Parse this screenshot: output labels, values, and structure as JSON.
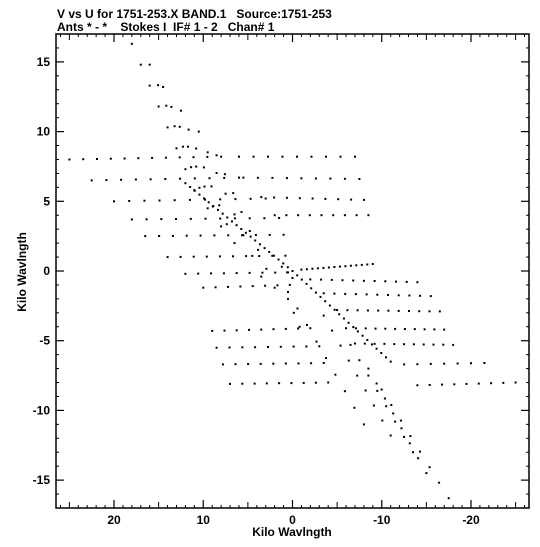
{
  "header": {
    "line1": "V vs U for 1751-253.X BAND.1   Source:1751-253",
    "line2": "Ants * - *    Stokes I  IF# 1 - 2   Chan# 1"
  },
  "chart_data": {
    "type": "scatter",
    "title": "V vs U for 1751-253.X BAND.1   Source:1751-253",
    "subtitle": "Ants * - *    Stokes I  IF# 1 - 2   Chan# 1",
    "xlabel": "Kilo Wavlngth",
    "ylabel": "Kilo Wavlngth",
    "xlim": [
      26.5,
      -26.5
    ],
    "ylim": [
      -17,
      17
    ],
    "x_reversed": true,
    "xticks": [
      20,
      10,
      0,
      -10,
      -20
    ],
    "xtick_labels": [
      "20",
      "10",
      "0",
      "-10",
      "-20"
    ],
    "yticks": [
      15,
      10,
      5,
      0,
      -5,
      -10,
      -15
    ],
    "ytick_labels": [
      "15",
      "10",
      "5",
      "0",
      "-5",
      "-10",
      "-15"
    ],
    "grid": false,
    "marker": "dot",
    "segments": [
      {
        "name": "",
        "x0": 25.0,
        "y0": 8.0,
        "x1": 8.0,
        "y1": 8.2,
        "n": 12
      },
      {
        "name": "",
        "x0": 22.5,
        "y0": 6.5,
        "x1": 6.0,
        "y1": 6.7,
        "n": 11
      },
      {
        "name": "",
        "x0": 20.0,
        "y0": 5.0,
        "x1": 3.0,
        "y1": 5.2,
        "n": 11
      },
      {
        "name": "",
        "x0": 18.0,
        "y0": 3.7,
        "x1": 1.5,
        "y1": 3.8,
        "n": 11
      },
      {
        "name": "",
        "x0": 16.5,
        "y0": 2.5,
        "x1": 1.0,
        "y1": 2.6,
        "n": 11
      },
      {
        "name": "",
        "x0": 14.0,
        "y0": 1.0,
        "x1": 0.8,
        "y1": 1.1,
        "n": 10
      },
      {
        "name": "",
        "x0": 12.0,
        "y0": -0.2,
        "x1": 0.5,
        "y1": -0.1,
        "n": 9
      },
      {
        "name": "",
        "x0": 10.0,
        "y0": -1.2,
        "x1": 0.3,
        "y1": -1.0,
        "n": 8
      },
      {
        "name": "",
        "x0": 6.0,
        "y0": 8.2,
        "x1": -7.0,
        "y1": 8.2,
        "n": 9
      },
      {
        "name": "",
        "x0": 5.5,
        "y0": 6.7,
        "x1": -7.5,
        "y1": 6.6,
        "n": 9
      },
      {
        "name": "",
        "x0": 3.5,
        "y0": 5.3,
        "x1": -8.0,
        "y1": 5.1,
        "n": 9
      },
      {
        "name": "",
        "x0": 2.0,
        "y0": 4.0,
        "x1": -8.5,
        "y1": 4.0,
        "n": 9
      },
      {
        "name": "",
        "x0": -1.0,
        "y0": 0.1,
        "x1": -9.0,
        "y1": 0.5,
        "n": 14
      },
      {
        "name": "",
        "x0": -2.0,
        "y0": -0.6,
        "x1": -14.0,
        "y1": -0.8,
        "n": 11
      },
      {
        "name": "",
        "x0": -3.5,
        "y0": -1.6,
        "x1": -15.5,
        "y1": -1.8,
        "n": 11
      },
      {
        "name": "",
        "x0": -5.0,
        "y0": -2.8,
        "x1": -16.5,
        "y1": -2.9,
        "n": 11
      },
      {
        "name": "",
        "x0": -6.0,
        "y0": -4.1,
        "x1": -17.0,
        "y1": -4.2,
        "n": 11
      },
      {
        "name": "",
        "x0": -7.0,
        "y0": -5.2,
        "x1": -18.0,
        "y1": -5.3,
        "n": 11
      },
      {
        "name": "",
        "x0": 9.0,
        "y0": -4.3,
        "x1": -2.0,
        "y1": -4.1,
        "n": 9
      },
      {
        "name": "",
        "x0": 8.5,
        "y0": -5.5,
        "x1": -3.0,
        "y1": -5.4,
        "n": 9
      },
      {
        "name": "",
        "x0": 7.8,
        "y0": -6.7,
        "x1": -3.5,
        "y1": -6.6,
        "n": 9
      },
      {
        "name": "",
        "x0": 7.0,
        "y0": -8.1,
        "x1": -4.0,
        "y1": -8.0,
        "n": 9
      },
      {
        "name": "",
        "x0": -12.5,
        "y0": -6.7,
        "x1": -21.5,
        "y1": -6.6,
        "n": 7
      },
      {
        "name": "",
        "x0": -14.0,
        "y0": -8.2,
        "x1": -25.0,
        "y1": -8.0,
        "n": 9
      },
      {
        "name": "",
        "x0": 18.0,
        "y0": 16.3,
        "x1": 11.0,
        "y1": 5.8,
        "n": 8
      },
      {
        "name": "",
        "x0": 16.0,
        "y0": 14.8,
        "x1": 9.5,
        "y1": 4.5,
        "n": 8
      },
      {
        "name": "",
        "x0": 14.5,
        "y0": 13.2,
        "x1": 8.0,
        "y1": 3.2,
        "n": 8
      },
      {
        "name": "",
        "x0": 12.5,
        "y0": 11.5,
        "x1": 6.5,
        "y1": 2.0,
        "n": 8
      },
      {
        "name": "",
        "x0": 10.5,
        "y0": 10.0,
        "x1": 3.5,
        "y1": -0.4,
        "n": 8
      },
      {
        "name": "",
        "x0": 8.5,
        "y0": 8.3,
        "x1": 2.0,
        "y1": -1.2,
        "n": 8
      },
      {
        "name": "",
        "x0": 12.0,
        "y0": 6.3,
        "x1": 0.0,
        "y1": 0.0,
        "n": 24
      },
      {
        "name": "",
        "x0": 0.0,
        "y0": 0.0,
        "x1": -11.0,
        "y1": -6.5,
        "n": 22
      },
      {
        "name": "",
        "x0": 0.5,
        "y0": -1.5,
        "x1": -8.0,
        "y1": -11.0,
        "n": 9
      },
      {
        "name": "",
        "x0": -3.5,
        "y0": -3.2,
        "x1": -11.0,
        "y1": -11.8,
        "n": 9
      },
      {
        "name": "",
        "x0": -6.5,
        "y0": -5.3,
        "x1": -13.5,
        "y1": -13.0,
        "n": 8
      },
      {
        "name": "",
        "x0": -8.5,
        "y0": -7.0,
        "x1": -15.0,
        "y1": -14.5,
        "n": 8
      },
      {
        "name": "",
        "x0": -10.0,
        "y0": -8.5,
        "x1": -17.5,
        "y1": -16.3,
        "n": 8
      },
      {
        "name": "",
        "x0": 0.5,
        "y0": -2.0,
        "x1": -0.8,
        "y1": -4.0,
        "n": 3
      },
      {
        "name": "",
        "x0": 1.2,
        "y0": 0.3,
        "x1": 0.0,
        "y1": -0.5,
        "n": 3
      }
    ]
  }
}
